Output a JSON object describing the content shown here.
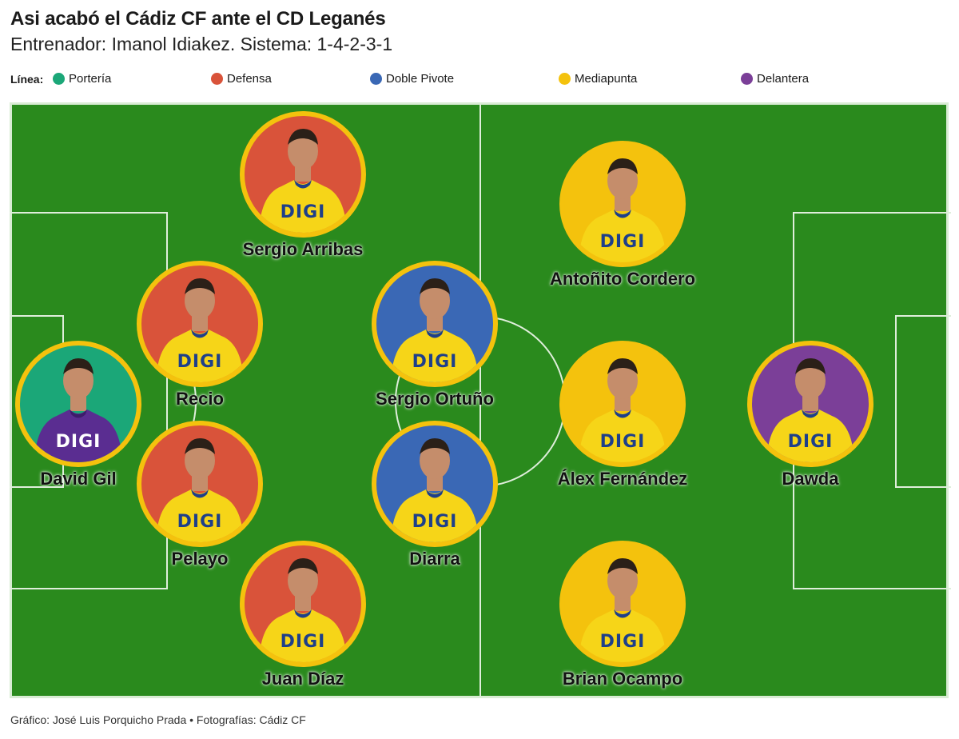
{
  "header": {
    "title": "Asi acabó el Cádiz CF ante el CD Leganés",
    "subtitle": "Entrenador: Imanol Idiakez. Sistema: 1-4-2-3-1"
  },
  "legend": {
    "label": "Línea:",
    "items": [
      {
        "label": "Portería",
        "color": "#1ba778"
      },
      {
        "label": "Defensa",
        "color": "#d9533a"
      },
      {
        "label": "Doble Pivote",
        "color": "#3a68b5"
      },
      {
        "label": "Mediapunta",
        "color": "#f4c20d"
      },
      {
        "label": "Delantera",
        "color": "#7b3f98"
      }
    ]
  },
  "players": [
    {
      "name": "David Gil",
      "line": "Portería",
      "bg": "#1ba778",
      "kit": "goalkeeper",
      "kit_text": "DIGI"
    },
    {
      "name": "Sergio Arribas",
      "line": "Defensa",
      "bg": "#d9533a",
      "kit": "field",
      "kit_text": "DIGI"
    },
    {
      "name": "Recio",
      "line": "Defensa",
      "bg": "#d9533a",
      "kit": "field",
      "kit_text": "DIGI"
    },
    {
      "name": "Pelayo",
      "line": "Defensa",
      "bg": "#d9533a",
      "kit": "field",
      "kit_text": "DIGI"
    },
    {
      "name": "Juan Díaz",
      "line": "Defensa",
      "bg": "#d9533a",
      "kit": "field",
      "kit_text": "DIGI"
    },
    {
      "name": "Sergio Ortuño",
      "line": "Doble Pivote",
      "bg": "#3a68b5",
      "kit": "field",
      "kit_text": "DIGI"
    },
    {
      "name": "Diarra",
      "line": "Doble Pivote",
      "bg": "#3a68b5",
      "kit": "field",
      "kit_text": "DIGI"
    },
    {
      "name": "Antoñito Cordero",
      "line": "Mediapunta",
      "bg": "#f4c20d",
      "kit": "field",
      "kit_text": "DIGI"
    },
    {
      "name": "Álex Fernández",
      "line": "Mediapunta",
      "bg": "#f4c20d",
      "kit": "field",
      "kit_text": "DIGI"
    },
    {
      "name": "Brian Ocampo",
      "line": "Mediapunta",
      "bg": "#f4c20d",
      "kit": "field",
      "kit_text": "DIGI"
    },
    {
      "name": "Dawda",
      "line": "Delantera",
      "bg": "#7b3f98",
      "kit": "field",
      "kit_text": "DIGI"
    }
  ],
  "footer": {
    "credit": "Gráfico: José Luis Porquicho Prada • Fotografías: Cádiz CF"
  }
}
